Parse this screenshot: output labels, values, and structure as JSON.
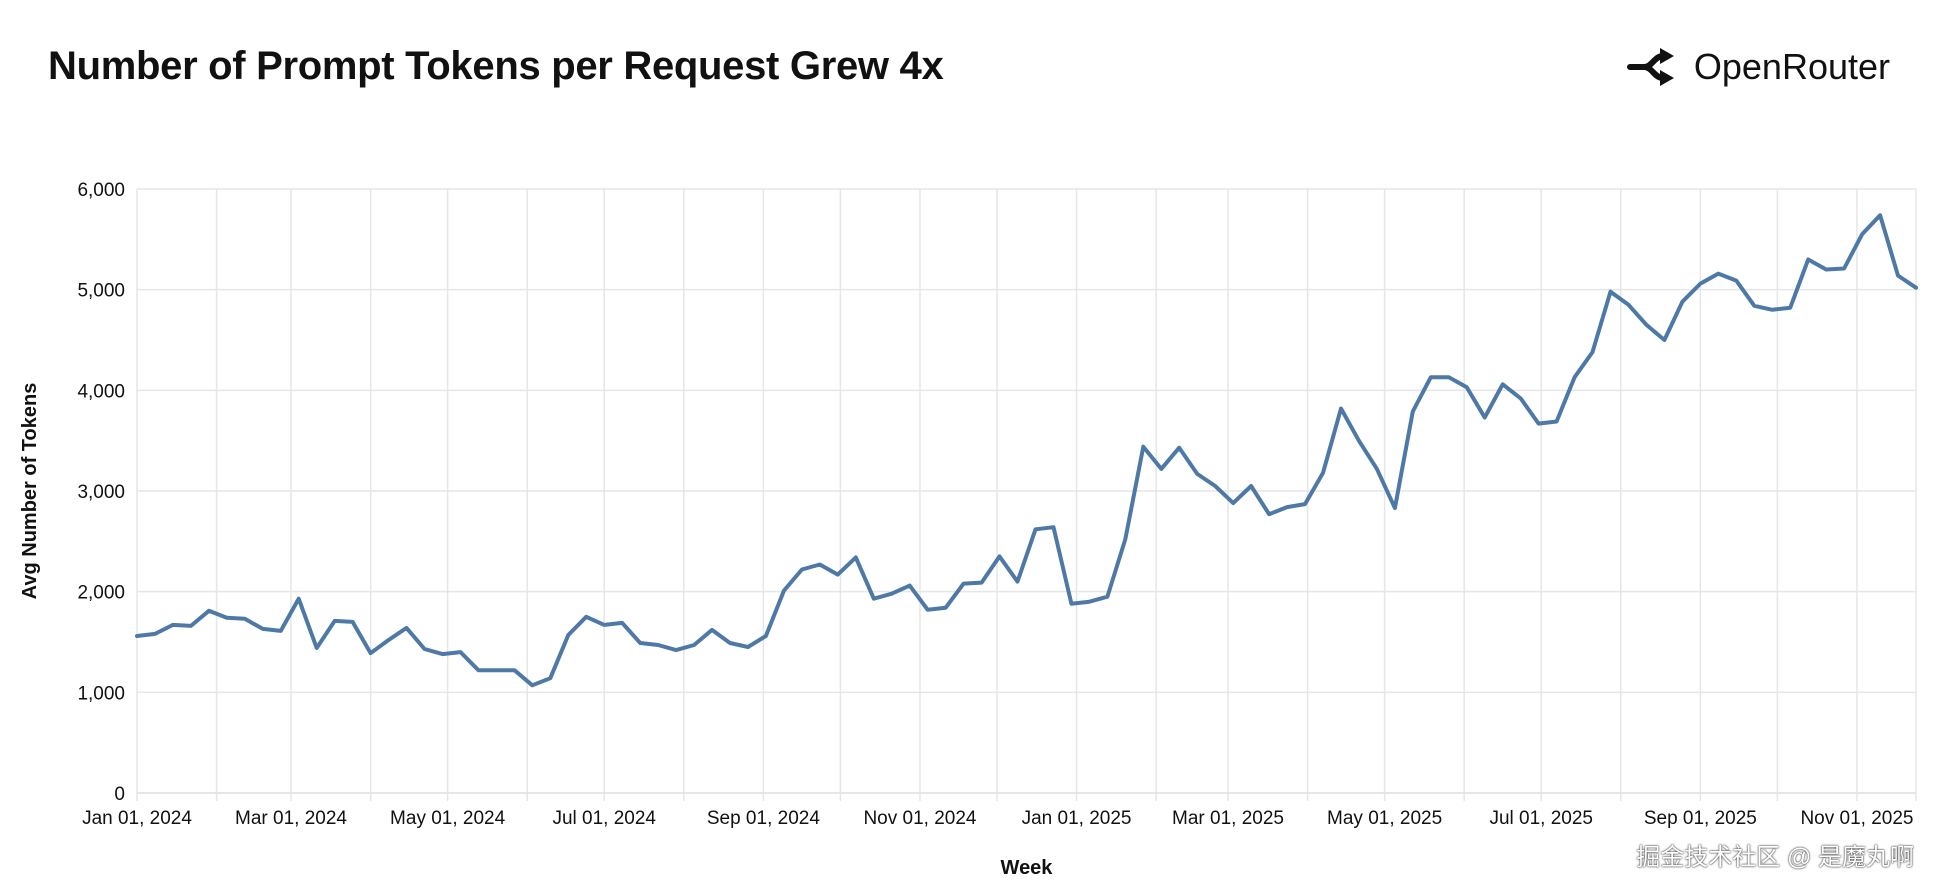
{
  "header": {
    "title": "Number of Prompt Tokens per Request Grew 4x",
    "brand": "OpenRouter"
  },
  "watermark": "掘金技术社区 @ 是魔丸啊",
  "colors": {
    "line": "#4e79a7",
    "grid": "#e6e6e6",
    "text": "#111111"
  },
  "chart_data": {
    "type": "line",
    "title": "Number of Prompt Tokens per Request Grew 4x",
    "xlabel": "Week",
    "ylabel": "Avg Number of Tokens",
    "ylim": [
      0,
      6000
    ],
    "yticks": [
      0,
      1000,
      2000,
      3000,
      4000,
      5000,
      6000
    ],
    "ytick_labels": [
      "0",
      "1,000",
      "2,000",
      "3,000",
      "4,000",
      "5,000",
      "6,000"
    ],
    "xtick_labels": [
      "Jan 01, 2024",
      "Mar 01, 2024",
      "May 01, 2024",
      "Jul 01, 2024",
      "Sep 01, 2024",
      "Nov 01, 2024",
      "Jan 01, 2025",
      "Mar 01, 2025",
      "May 01, 2025",
      "Jul 01, 2025",
      "Sep 01, 2025",
      "Nov 01, 2025"
    ],
    "grid": true,
    "x_start": "2024-01-01",
    "x_step_weeks": 1,
    "series": [
      {
        "name": "Avg Number of Tokens",
        "values": [
          1560,
          1580,
          1670,
          1660,
          1810,
          1740,
          1730,
          1630,
          1610,
          1930,
          1440,
          1710,
          1700,
          1390,
          1520,
          1640,
          1430,
          1380,
          1400,
          1220,
          1220,
          1220,
          1070,
          1140,
          1570,
          1750,
          1670,
          1690,
          1490,
          1470,
          1420,
          1470,
          1620,
          1490,
          1450,
          1560,
          2010,
          2220,
          2270,
          2170,
          2340,
          1930,
          1980,
          2060,
          1820,
          1840,
          2080,
          2090,
          2350,
          2100,
          2620,
          2640,
          1880,
          1900,
          1950,
          2520,
          3440,
          3220,
          3430,
          3170,
          3050,
          2880,
          3050,
          2770,
          2840,
          2870,
          3180,
          3820,
          3500,
          3220,
          2830,
          3790,
          4130,
          4130,
          4030,
          3730,
          4060,
          3920,
          3670,
          3690,
          4130,
          4380,
          4980,
          4850,
          4650,
          4500,
          4880,
          5060,
          5160,
          5090,
          4840,
          4800,
          4820,
          5300,
          5200,
          5210,
          5550,
          5740,
          5140,
          5020
        ]
      }
    ]
  }
}
